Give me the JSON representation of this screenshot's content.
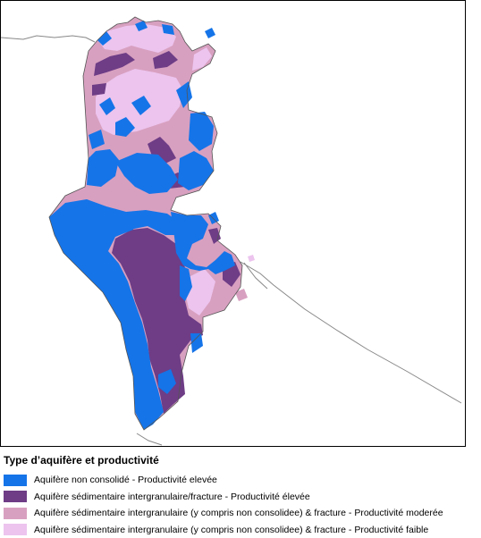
{
  "legend": {
    "title": "Type d’aquifère et productivité",
    "items": [
      {
        "label": "Aquifère non consolidé - Productivité elevée",
        "color": "#1574e8"
      },
      {
        "label": "Aquifère sédimentaire intergranulaire/fracture - Productivité élevée",
        "color": "#6e3d86"
      },
      {
        "label": "Aquifère sédimentaire intergranulaire (y compris non consolidee) & fracture - Productivité moderée",
        "color": "#d8a0c0"
      },
      {
        "label": "Aquifère sédimentaire intergranulaire (y compris non consolidee) & fracture - Productivité faible",
        "color": "#ecc4ee"
      }
    ]
  },
  "colors": {
    "frame": "#000000",
    "border_lines": "#7a7a7a"
  }
}
